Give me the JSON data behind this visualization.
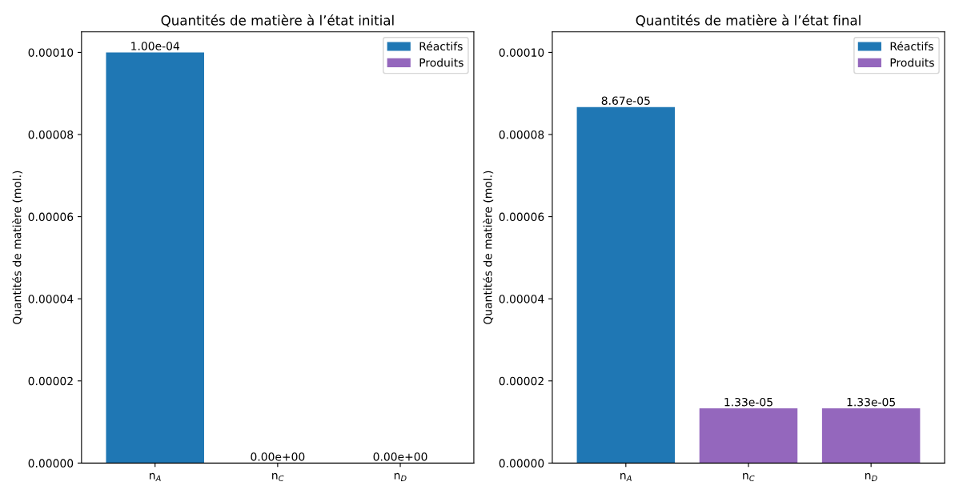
{
  "chart_data": [
    {
      "type": "bar",
      "title": "Quantités de matière à l’état initial",
      "ylabel": "Quantités de matière (mol.)",
      "categories": [
        "n$_{A}$",
        "n$_{C}$",
        "n$_{D}$"
      ],
      "series": [
        {
          "name": "Réactifs",
          "color": "#1f77b4",
          "values": [
            0.0001,
            null,
            null
          ],
          "value_labels": [
            "1.00e-04",
            null,
            null
          ]
        },
        {
          "name": "Produits",
          "color": "#9467bd",
          "values": [
            null,
            0,
            0
          ],
          "value_labels": [
            null,
            "0.00e+00",
            "0.00e+00"
          ]
        }
      ],
      "ylim": [
        0,
        0.000105
      ],
      "yticks": [
        {
          "value": 0,
          "label": "0.00000"
        },
        {
          "value": 2e-05,
          "label": "0.00002"
        },
        {
          "value": 4e-05,
          "label": "0.00004"
        },
        {
          "value": 6e-05,
          "label": "0.00006"
        },
        {
          "value": 8e-05,
          "label": "0.00008"
        },
        {
          "value": 0.0001,
          "label": "0.00010"
        }
      ],
      "legend": "top right"
    },
    {
      "type": "bar",
      "title": "Quantités de matière à l’état final",
      "ylabel": "Quantités de matière (mol.)",
      "categories": [
        "n$_{A}$",
        "n$_{C}$",
        "n$_{D}$"
      ],
      "series": [
        {
          "name": "Réactifs",
          "color": "#1f77b4",
          "values": [
            8.67e-05,
            null,
            null
          ],
          "value_labels": [
            "8.67e-05",
            null,
            null
          ]
        },
        {
          "name": "Produits",
          "color": "#9467bd",
          "values": [
            null,
            1.33e-05,
            1.33e-05
          ],
          "value_labels": [
            null,
            "1.33e-05",
            "1.33e-05"
          ]
        }
      ],
      "ylim": [
        0,
        0.000105
      ],
      "yticks": [
        {
          "value": 0,
          "label": "0.00000"
        },
        {
          "value": 2e-05,
          "label": "0.00002"
        },
        {
          "value": 4e-05,
          "label": "0.00004"
        },
        {
          "value": 6e-05,
          "label": "0.00006"
        },
        {
          "value": 8e-05,
          "label": "0.00008"
        },
        {
          "value": 0.0001,
          "label": "0.00010"
        }
      ],
      "legend": "top right"
    }
  ]
}
